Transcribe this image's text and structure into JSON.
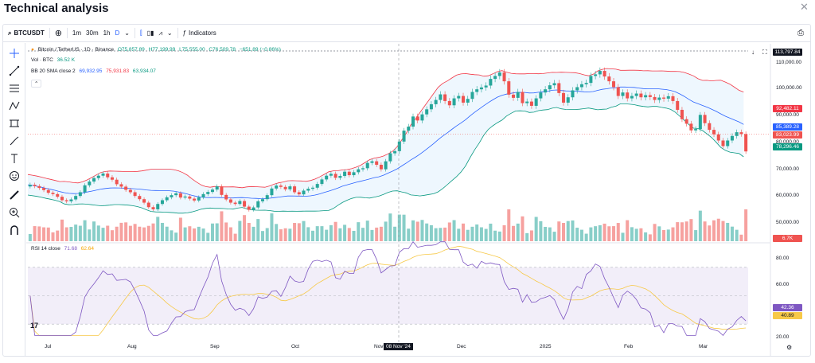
{
  "window": {
    "title": "Technical analysis",
    "close_icon": "close-icon"
  },
  "toolbar": {
    "symbol": "BTCUSDT",
    "timeframes": [
      "1m",
      "30m",
      "1h",
      "D"
    ],
    "active_timeframe": "D",
    "indicators_label": "Indicators"
  },
  "legend": {
    "pair": "Bitcoin / TetherUS · 1D · Binance",
    "o": "O75,857.89",
    "h": "H77,199.99",
    "l": "L75,555.00",
    "c": "C76,509.78",
    "change": "−651.89 (−0.86%)",
    "vol_label": "Vol · BTC",
    "vol_value": "36.52 K",
    "bb_label": "BB 20 SMA close 2",
    "bb_basis": "69,932.95",
    "bb_upper": "75,931.83",
    "bb_lower": "63,934.07",
    "rsi_label": "RSI 14 close",
    "rsi_value": "71.68",
    "rsi_ma": "62.64"
  },
  "price_axis": [
    "110,000.00",
    "100,000.00",
    "90,000.00",
    "80,000.00",
    "70,000.00",
    "60,000.00",
    "50,000.00"
  ],
  "rsi_axis": [
    "80.00",
    "60.00",
    "20.00"
  ],
  "price_tags": {
    "high": "113,797.84",
    "upper": "92,482.11",
    "basis": "85,389.28",
    "last": "83,023.99",
    "lower": "78,296.46",
    "volume": "6.7K",
    "rsi": "42.36",
    "rsi_ma": "40.89"
  },
  "months": [
    "Jul",
    "Aug",
    "Sep",
    "Oct",
    "Nov",
    "Dec",
    "2025",
    "Feb",
    "Mar"
  ],
  "crosshair_date": "08 Nov '24",
  "colors": {
    "up": "#26a69a",
    "down": "#ef5350",
    "upper": "#f23645",
    "basis": "#2962ff",
    "lower": "#089981",
    "rsi": "#7e57c2",
    "rsi_ma": "#f7c948"
  },
  "chart_data": {
    "type": "candlestick",
    "title": "Bitcoin / TetherUS · 1D · Binance",
    "close_series": [
      64000,
      63500,
      62800,
      62000,
      61000,
      60500,
      59500,
      58200,
      57800,
      58500,
      59800,
      61200,
      63800,
      65200,
      66500,
      67400,
      68200,
      66800,
      65900,
      64200,
      63300,
      62100,
      61200,
      59800,
      58600,
      57300,
      55600,
      54800,
      56800,
      58200,
      59300,
      60100,
      60800,
      59200,
      59600,
      58800,
      58100,
      59300,
      60500,
      61300,
      62200,
      63400,
      60200,
      58500,
      57300,
      56800,
      57900,
      55800,
      54600,
      55500,
      57800,
      58600,
      60100,
      62600,
      63700,
      63200,
      62300,
      63400,
      61200,
      60400,
      61800,
      62500,
      62900,
      64300,
      66000,
      67400,
      68100,
      66600,
      67300,
      68900,
      67600,
      68700,
      69800,
      70200,
      72200,
      72800,
      71500,
      69800,
      72800,
      75800,
      76600,
      80200,
      84300,
      85800,
      89600,
      88100,
      90400,
      92300,
      94200,
      95800,
      97900,
      95400,
      93800,
      96400,
      97300,
      94800,
      96200,
      98800,
      99800,
      100500,
      101200,
      103700,
      104800,
      106100,
      102800,
      97800,
      96600,
      98800,
      94600,
      95200,
      93600,
      96400,
      98600,
      99800,
      101300,
      102100,
      98400,
      94800,
      96800,
      99400,
      100600,
      101700,
      102200,
      104800,
      105400,
      106700,
      104600,
      102800,
      100600,
      97300,
      98600,
      96400,
      97300,
      98200,
      96800,
      97600,
      96900,
      95800,
      96700,
      96300,
      97200,
      95400,
      92100,
      88600,
      86900,
      84400,
      84900,
      90200,
      87100,
      84600,
      82900,
      80600,
      78500,
      80600,
      82300,
      83700,
      83000,
      76500
    ],
    "y_range": [
      50000,
      113797.84
    ],
    "x_ticks": [
      "Jul",
      "Aug",
      "Sep",
      "Oct",
      "Nov",
      "Dec",
      "2025",
      "Feb",
      "Mar"
    ],
    "rsi_range": [
      20,
      80
    ]
  }
}
